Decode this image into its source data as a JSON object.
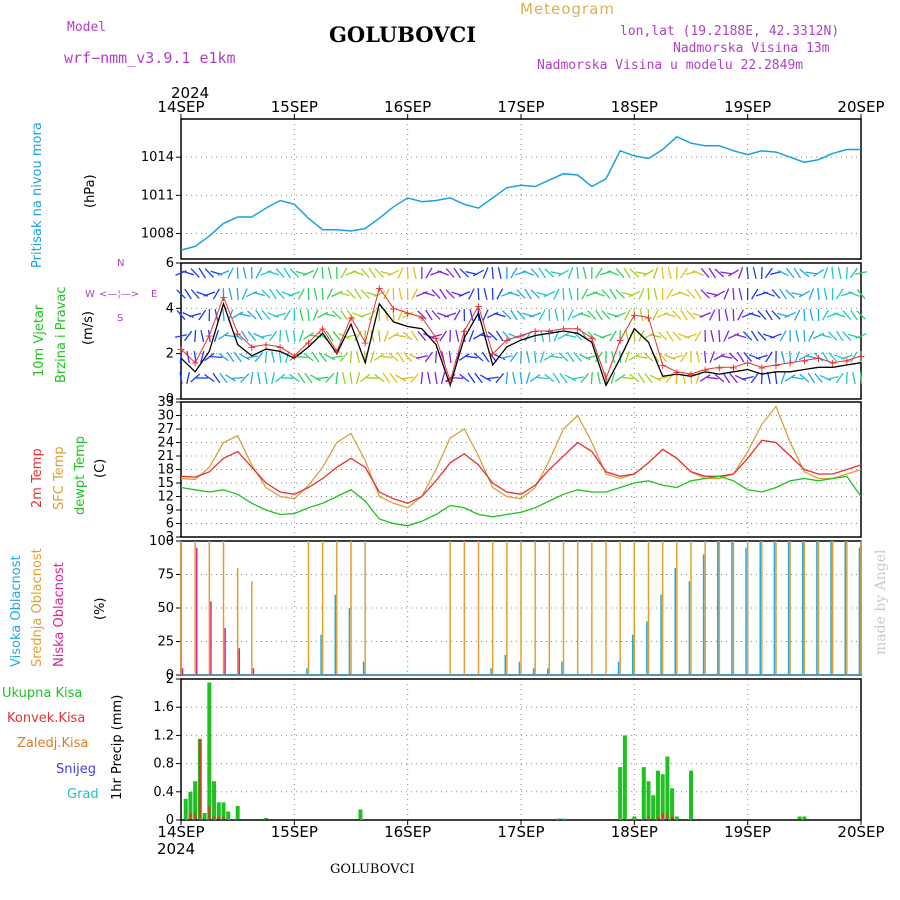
{
  "header": {
    "model_label": "Model",
    "model_name": "wrf−nmm_v3.9.1 e1km",
    "station": "GOLUBOVCI",
    "meteogram_label": "Meteogram",
    "lonlat": "lon,lat (19.2188E, 42.3312N)",
    "elevation": "Nadmorska Visina 13m",
    "model_elevation": "Nadmorska Visina u modelu 22.2849m",
    "year_top": "2024",
    "year_bottom": "2024",
    "footer_station": "GOLUBOVCI",
    "watermark": "made by Angel"
  },
  "x_axis": {
    "ticks": [
      "14SEP",
      "15SEP",
      "16SEP",
      "17SEP",
      "18SEP",
      "19SEP",
      "20SEP"
    ]
  },
  "colors": {
    "pressure": "#1aa0e0",
    "wind_speed": "#000000",
    "wind_gust": "#e83030",
    "temp_2m": "#e83030",
    "temp_sfc": "#d8a040",
    "dewpoint": "#20c020",
    "cloud_high": "#20a8e8",
    "cloud_mid": "#e0a030",
    "cloud_low": "#e02090",
    "precip_total": "#20c020",
    "precip_conv": "#e83030",
    "precip_large": "#e07a20",
    "snow": "#4040e0",
    "graupel": "#20c0c0"
  },
  "panels": {
    "pressure": {
      "ylabel": "Pritisak na nivou mora",
      "unit": "(hPa)",
      "ticks": [
        "1008",
        "1011",
        "1014"
      ]
    },
    "wind": {
      "ylabel1": "10m Vjetar",
      "ylabel2": "Brzina i Pravac",
      "unit": "(m/s)",
      "ticks": [
        "0",
        "2",
        "4",
        "6"
      ],
      "compass_n": "N",
      "compass_s": "S",
      "compass_e": "E",
      "compass_w": "W"
    },
    "temp": {
      "ylabel1": "2m Temp",
      "ylabel2": "SFC Temp",
      "ylabel3": "dewpt Temp",
      "unit": "(C)",
      "ticks": [
        "3",
        "6",
        "9",
        "12",
        "15",
        "18",
        "21",
        "24",
        "27",
        "30",
        "33"
      ]
    },
    "cloud": {
      "ylabel1": "Visoka Oblacnost",
      "ylabel2": "Srednja Oblacnost",
      "ylabel3": "Niska Oblacnost",
      "unit": "(%)",
      "ticks": [
        "0",
        "25",
        "50",
        "75",
        "100"
      ]
    },
    "precip": {
      "ylabel": "1hr Precip (mm)",
      "ticks": [
        "0",
        "0.4",
        "0.8",
        "1.2",
        "1.6",
        "2"
      ],
      "legend": [
        "Ukupna Kisa",
        "Konvek.Kisa",
        "Zaledj.Kisa",
        "Snijeg",
        "Grad"
      ]
    }
  },
  "chart_data": [
    {
      "type": "line",
      "id": "pressure",
      "ylim": [
        1006,
        1017
      ],
      "x": [
        0,
        3,
        6,
        9,
        12,
        15,
        18,
        21,
        24,
        27,
        30,
        33,
        36,
        39,
        42,
        45,
        48,
        51,
        54,
        57,
        60,
        63,
        66,
        69,
        72,
        75,
        78,
        81,
        84,
        87,
        90,
        93,
        96,
        99,
        102,
        105,
        108,
        111,
        114,
        117,
        120,
        123,
        126,
        129,
        132,
        135,
        138,
        141,
        144
      ],
      "series": [
        {
          "values": [
            1006.7,
            1007.0,
            1007.8,
            1008.8,
            1009.3,
            1009.3,
            1010.0,
            1010.6,
            1010.3,
            1009.2,
            1008.3,
            1008.3,
            1008.2,
            1008.4,
            1009.2,
            1010.1,
            1010.8,
            1010.5,
            1010.6,
            1010.8,
            1010.3,
            1010.0,
            1010.8,
            1011.6,
            1011.8,
            1011.7,
            1012.2,
            1012.7,
            1012.6,
            1011.7,
            1012.3,
            1014.5,
            1014.1,
            1013.9,
            1014.6,
            1015.6,
            1015.1,
            1014.9,
            1014.9,
            1014.5,
            1014.2,
            1014.5,
            1014.4,
            1014.0,
            1013.6,
            1013.8,
            1014.3,
            1014.6,
            1014.6
          ]
        }
      ]
    },
    {
      "type": "line",
      "id": "wind",
      "ylim": [
        0,
        6
      ],
      "x": [
        0,
        3,
        6,
        9,
        12,
        15,
        18,
        21,
        24,
        27,
        30,
        33,
        36,
        39,
        42,
        45,
        48,
        51,
        54,
        57,
        60,
        63,
        66,
        69,
        72,
        75,
        78,
        81,
        84,
        87,
        90,
        93,
        96,
        99,
        102,
        105,
        108,
        111,
        114,
        117,
        120,
        123,
        126,
        129,
        132,
        135,
        138,
        141,
        144
      ],
      "series": [
        {
          "name": "speed",
          "values": [
            1.8,
            1.2,
            2.1,
            4.2,
            2.4,
            1.9,
            2.2,
            2.1,
            1.8,
            2.3,
            2.9,
            2.0,
            3.3,
            1.6,
            4.2,
            3.4,
            3.2,
            3.1,
            2.4,
            0.6,
            2.7,
            3.8,
            1.5,
            2.3,
            2.6,
            2.8,
            2.9,
            3.0,
            2.9,
            2.5,
            0.6,
            1.8,
            3.1,
            2.5,
            1.0,
            1.1,
            1.0,
            1.2,
            1.1,
            1.2,
            1.3,
            1.1,
            1.2,
            1.2,
            1.3,
            1.4,
            1.4,
            1.5,
            1.6
          ]
        },
        {
          "name": "gust",
          "values": [
            2.2,
            1.6,
            2.8,
            4.5,
            2.9,
            2.3,
            2.4,
            2.3,
            1.9,
            2.5,
            3.1,
            2.1,
            3.6,
            2.5,
            4.9,
            4.0,
            3.8,
            3.6,
            2.7,
            0.8,
            3.0,
            4.1,
            2.0,
            2.6,
            2.8,
            3.0,
            3.0,
            3.1,
            3.1,
            2.7,
            0.9,
            2.6,
            3.7,
            3.6,
            1.5,
            1.2,
            1.1,
            1.3,
            1.4,
            1.4,
            1.6,
            1.4,
            1.5,
            1.6,
            1.7,
            1.8,
            1.6,
            1.7,
            1.9
          ]
        }
      ]
    },
    {
      "type": "line",
      "id": "temp",
      "ylim": [
        3,
        33
      ],
      "x": [
        0,
        3,
        6,
        9,
        12,
        15,
        18,
        21,
        24,
        27,
        30,
        33,
        36,
        39,
        42,
        45,
        48,
        51,
        54,
        57,
        60,
        63,
        66,
        69,
        72,
        75,
        78,
        81,
        84,
        87,
        90,
        93,
        96,
        99,
        102,
        105,
        108,
        111,
        114,
        117,
        120,
        123,
        126,
        129,
        132,
        135,
        138,
        141,
        144
      ],
      "series": [
        {
          "name": "2m",
          "values": [
            16.5,
            16.3,
            17.5,
            20.5,
            22.0,
            18.5,
            15.0,
            13.0,
            12.5,
            14.0,
            16.0,
            18.5,
            20.5,
            18.5,
            13.0,
            11.5,
            10.5,
            12.0,
            15.5,
            19.5,
            21.5,
            19.0,
            15.0,
            13.0,
            12.5,
            14.5,
            18.0,
            21.0,
            24.0,
            22.0,
            17.5,
            16.5,
            17.0,
            19.5,
            22.5,
            20.5,
            17.5,
            16.5,
            16.5,
            17.0,
            20.5,
            24.5,
            24.0,
            21.0,
            18.0,
            17.0,
            17.0,
            18.0,
            19.0
          ]
        },
        {
          "name": "sfc",
          "values": [
            16.0,
            15.8,
            18.5,
            24.0,
            25.5,
            19.0,
            14.0,
            12.0,
            11.5,
            14.5,
            18.5,
            24.0,
            26.0,
            20.0,
            12.0,
            10.5,
            9.5,
            12.0,
            18.0,
            25.0,
            27.0,
            21.0,
            14.0,
            12.0,
            11.5,
            14.0,
            20.0,
            27.0,
            30.0,
            24.0,
            17.0,
            16.0,
            17.0,
            19.5,
            22.5,
            20.5,
            17.5,
            16.0,
            16.0,
            17.0,
            22.0,
            28.0,
            32.0,
            24.0,
            17.5,
            16.0,
            16.0,
            17.0,
            18.0
          ]
        },
        {
          "name": "dewpt",
          "values": [
            14.0,
            13.5,
            13.0,
            13.5,
            12.5,
            10.5,
            9.0,
            8.0,
            8.2,
            9.5,
            10.5,
            12.0,
            13.5,
            11.0,
            7.0,
            6.0,
            5.5,
            6.5,
            8.0,
            10.0,
            9.5,
            8.0,
            7.5,
            8.0,
            8.5,
            9.5,
            11.0,
            12.5,
            13.5,
            13.0,
            13.0,
            14.0,
            15.0,
            15.5,
            14.5,
            14.0,
            15.5,
            16.0,
            16.5,
            15.5,
            13.5,
            13.0,
            14.0,
            15.5,
            16.0,
            15.5,
            16.0,
            16.5,
            12.0
          ]
        }
      ]
    },
    {
      "type": "bar",
      "id": "cloud",
      "ylim": [
        0,
        100
      ],
      "x": [
        0,
        3,
        6,
        9,
        12,
        15,
        18,
        21,
        24,
        27,
        30,
        33,
        36,
        39,
        42,
        45,
        48,
        51,
        54,
        57,
        60,
        63,
        66,
        69,
        72,
        75,
        78,
        81,
        84,
        87,
        90,
        93,
        96,
        99,
        102,
        105,
        108,
        111,
        114,
        117,
        120,
        123,
        126,
        129,
        132,
        135,
        138,
        141,
        144
      ],
      "series": [
        {
          "name": "high",
          "values": [
            0,
            0,
            0,
            0,
            0,
            0,
            0,
            0,
            0,
            5,
            30,
            60,
            50,
            10,
            0,
            0,
            0,
            0,
            0,
            0,
            0,
            0,
            5,
            15,
            10,
            5,
            5,
            10,
            0,
            0,
            0,
            10,
            30,
            40,
            60,
            80,
            70,
            90,
            100,
            100,
            95,
            100,
            100,
            100,
            100,
            100,
            100,
            100,
            95
          ]
        },
        {
          "name": "mid",
          "values": [
            100,
            100,
            100,
            100,
            80,
            70,
            0,
            0,
            0,
            100,
            100,
            100,
            100,
            100,
            0,
            0,
            0,
            0,
            0,
            100,
            100,
            100,
            100,
            100,
            100,
            100,
            100,
            100,
            100,
            100,
            100,
            100,
            100,
            100,
            100,
            100,
            100,
            100,
            100,
            100,
            100,
            100,
            100,
            100,
            100,
            100,
            100,
            100,
            100
          ]
        },
        {
          "name": "low",
          "values": [
            5,
            95,
            55,
            35,
            20,
            5,
            0,
            0,
            0,
            0,
            0,
            0,
            0,
            0,
            0,
            0,
            0,
            0,
            0,
            0,
            0,
            0,
            0,
            0,
            0,
            0,
            0,
            0,
            0,
            0,
            0,
            0,
            0,
            0,
            0,
            0,
            0,
            0,
            0,
            0,
            0,
            0,
            0,
            0,
            0,
            0,
            0,
            0,
            0
          ]
        }
      ]
    },
    {
      "type": "bar",
      "id": "precip",
      "ylim": [
        0,
        2
      ],
      "x": [
        1,
        2,
        3,
        4,
        5,
        6,
        7,
        8,
        9,
        10,
        12,
        18,
        38,
        80,
        81,
        93,
        94,
        96,
        98,
        99,
        100,
        101,
        102,
        103,
        104,
        105,
        108,
        131,
        132
      ],
      "series": [
        {
          "name": "total",
          "values": [
            0.3,
            0.4,
            0.55,
            1.15,
            0.1,
            1.95,
            0.55,
            0.25,
            0.25,
            0.12,
            0.2,
            0.03,
            0.15,
            0.02,
            0.02,
            0.75,
            1.2,
            0.05,
            0.75,
            0.55,
            0.35,
            0.7,
            0.65,
            0.9,
            0.45,
            0.05,
            0.7,
            0.05,
            0.05
          ]
        },
        {
          "name": "convective",
          "values": [
            0,
            0.1,
            0.1,
            1.15,
            0,
            0.2,
            0.05,
            0.05,
            0.05,
            0,
            0,
            0,
            0,
            0,
            0,
            0,
            0,
            0,
            0,
            0.05,
            0,
            0.05,
            0.1,
            0.1,
            0.05,
            0,
            0,
            0,
            0
          ]
        }
      ]
    }
  ]
}
